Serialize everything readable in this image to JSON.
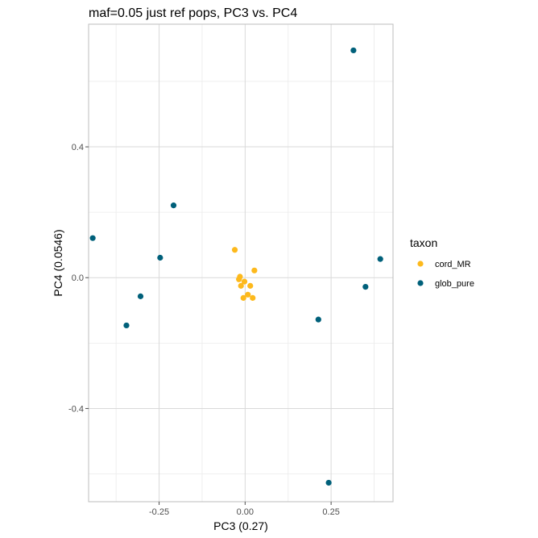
{
  "chart_data": {
    "type": "scatter",
    "title": "maf=0.05 just ref pops, PC3 vs. PC4",
    "xlabel": "PC3 (0.27)",
    "ylabel": "PC4 (0.0546)",
    "xlim": [
      -0.455,
      0.43
    ],
    "ylim": [
      -0.685,
      0.775
    ],
    "x_ticks": [
      -0.25,
      0.0,
      0.25
    ],
    "x_tick_labels": [
      "-0.25",
      "0.00",
      "0.25"
    ],
    "y_ticks": [
      -0.4,
      0.0,
      0.4
    ],
    "y_tick_labels": [
      "-0.4",
      "0.0",
      "0.4"
    ],
    "grid": true,
    "legend": {
      "title": "taxon",
      "position": "right"
    },
    "series": [
      {
        "name": "cord_MR",
        "color": "#FDB91C",
        "points": [
          {
            "x": -0.03,
            "y": 0.085
          },
          {
            "x": -0.015,
            "y": 0.003
          },
          {
            "x": -0.018,
            "y": -0.005
          },
          {
            "x": -0.012,
            "y": -0.025
          },
          {
            "x": -0.002,
            "y": -0.012
          },
          {
            "x": 0.015,
            "y": -0.025
          },
          {
            "x": 0.027,
            "y": 0.022
          },
          {
            "x": 0.008,
            "y": -0.052
          },
          {
            "x": -0.005,
            "y": -0.062
          },
          {
            "x": 0.022,
            "y": -0.062
          }
        ]
      },
      {
        "name": "glob_pure",
        "color": "#00607A",
        "points": [
          {
            "x": 0.315,
            "y": 0.695
          },
          {
            "x": -0.208,
            "y": 0.221
          },
          {
            "x": -0.443,
            "y": 0.121
          },
          {
            "x": -0.247,
            "y": 0.061
          },
          {
            "x": 0.393,
            "y": 0.057
          },
          {
            "x": 0.35,
            "y": -0.028
          },
          {
            "x": -0.304,
            "y": -0.057
          },
          {
            "x": -0.345,
            "y": -0.146
          },
          {
            "x": 0.213,
            "y": -0.128
          },
          {
            "x": 0.243,
            "y": -0.627
          }
        ]
      }
    ]
  }
}
